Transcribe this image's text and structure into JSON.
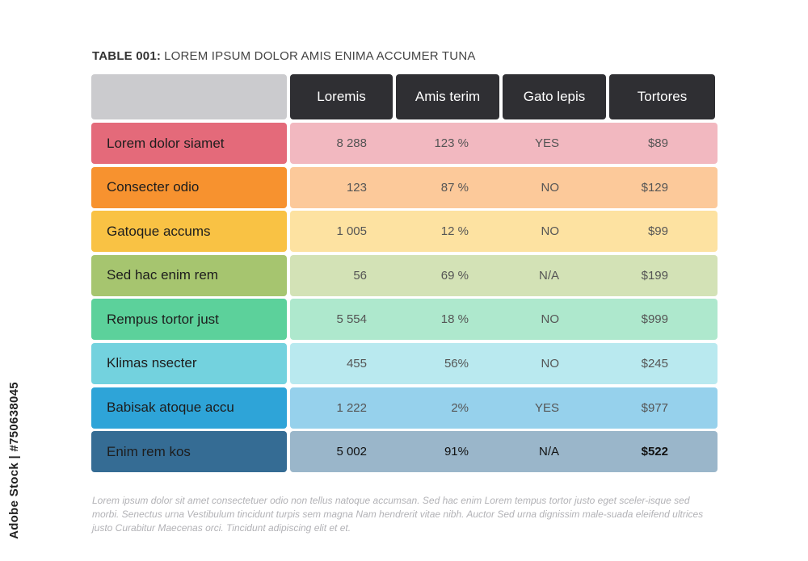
{
  "credit": "Adobe Stock | #750638045",
  "title": {
    "prefix": "TABLE 001:",
    "text": "LOREM IPSUM DOLOR AMIS ENIMA ACCUMER TUNA"
  },
  "columns": [
    "Loremis",
    "Amis terim",
    "Gato lepis",
    "Tortores"
  ],
  "rows": [
    {
      "label": "Lorem dolor siamet",
      "values": [
        "8 288",
        "123 %",
        "YES",
        "$89"
      ],
      "label_color": "#e46a7a",
      "row_color": "#f2b8c0"
    },
    {
      "label": "Consecter odio",
      "values": [
        "123",
        "87 %",
        "NO",
        "$129"
      ],
      "label_color": "#f7922f",
      "row_color": "#fcc99a"
    },
    {
      "label": "Gatoque accums",
      "values": [
        "1 005",
        "12 %",
        "NO",
        "$99"
      ],
      "label_color": "#f9c244",
      "row_color": "#fde2a1"
    },
    {
      "label": "Sed hac enim rem",
      "values": [
        "56",
        "69 %",
        "N/A",
        "$199"
      ],
      "label_color": "#a6c56f",
      "row_color": "#d3e2b6"
    },
    {
      "label": "Rempus tortor just",
      "values": [
        "5 554",
        "18 %",
        "NO",
        "$999"
      ],
      "label_color": "#5cd19b",
      "row_color": "#aee8cd"
    },
    {
      "label": "Klimas nsecter",
      "values": [
        "455",
        "56%",
        "NO",
        "$245"
      ],
      "label_color": "#73d2de",
      "row_color": "#b9e9ef"
    },
    {
      "label": "Babisak atoque accu",
      "values": [
        "1 222",
        "2%",
        "YES",
        "$977"
      ],
      "label_color": "#2ea4d8",
      "row_color": "#96d1ec"
    },
    {
      "label": "Enim rem kos",
      "values": [
        "5 002",
        "91%",
        "N/A",
        "$522"
      ],
      "label_color": "#356c94",
      "row_color": "#9ab6ca"
    }
  ],
  "header_color": "#2f2f33",
  "corner_color": "#cbcbce",
  "footnote": "Lorem ipsum dolor sit amet consectetuer odio non tellus natoque accumsan. Sed hac enim Lorem tempus tortor justo eget sceler-isque sed morbi. Senectus urna Vestibulum tincidunt turpis sem magna Nam hendrerit vitae nibh. Auctor Sed urna dignissim male-suada eleifend ultrices justo Curabitur Maecenas orci. Tincidunt adipiscing elit et et."
}
